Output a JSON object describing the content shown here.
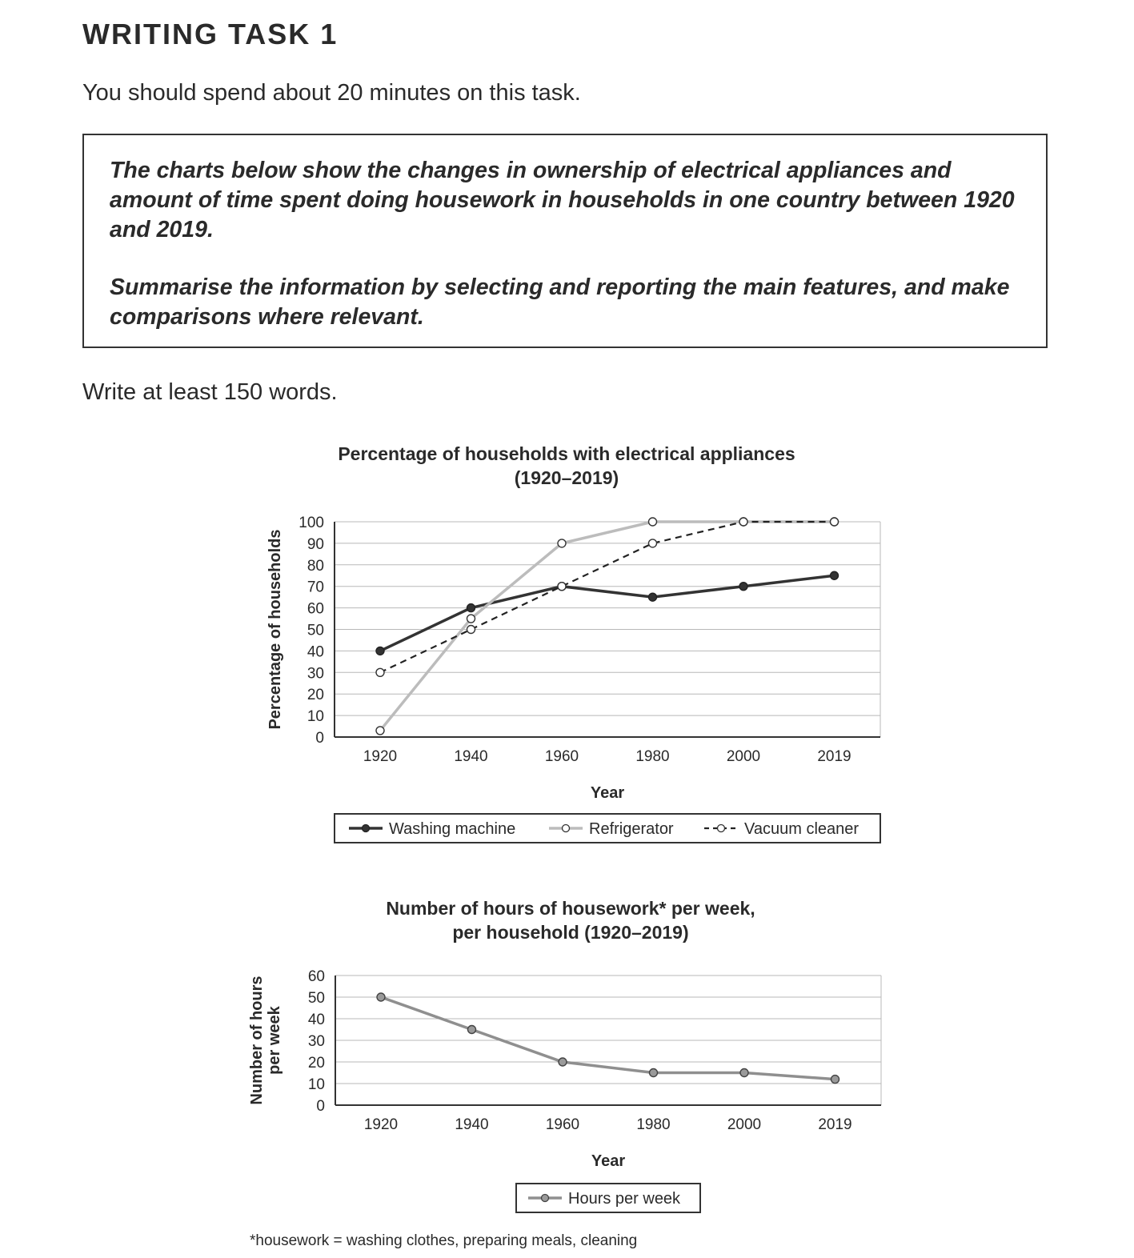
{
  "header": {
    "title": "WRITING TASK 1",
    "instruction": "You should spend about 20 minutes on this task."
  },
  "prompt": {
    "paragraph1": "The charts below show the changes in ownership of electrical appliances and amount of time spent doing housework in households in one country between 1920 and 2019.",
    "paragraph2": "Summarise the information by selecting and reporting the main features, and make comparisons where relevant."
  },
  "word_requirement": "Write at least 150 words.",
  "footnote": "*housework = washing clothes, preparing meals, cleaning",
  "chart_data": [
    {
      "type": "line",
      "title": "Percentage of households with electrical appliances",
      "subtitle": "(1920–2019)",
      "xlabel": "Year",
      "ylabel": "Percentage of households",
      "categories": [
        "1920",
        "1940",
        "1960",
        "1980",
        "2000",
        "2019"
      ],
      "ylim": [
        0,
        100
      ],
      "yticks": [
        0,
        10,
        20,
        30,
        40,
        50,
        60,
        70,
        80,
        90,
        100
      ],
      "grid": true,
      "legend_position": "bottom",
      "series": [
        {
          "name": "Washing machine",
          "values": [
            40,
            60,
            70,
            65,
            70,
            75
          ],
          "color": "#333333",
          "style": "solid",
          "marker": "filled"
        },
        {
          "name": "Refrigerator",
          "values": [
            3,
            55,
            90,
            100,
            100,
            100
          ],
          "color": "#bcbcbc",
          "style": "solid",
          "marker": "open"
        },
        {
          "name": "Vacuum cleaner",
          "values": [
            30,
            50,
            70,
            90,
            100,
            100
          ],
          "color": "#222222",
          "style": "dashed",
          "marker": "open"
        }
      ]
    },
    {
      "type": "line",
      "title": "Number of hours of housework* per week,",
      "subtitle": "per household (1920–2019)",
      "xlabel": "Year",
      "ylabel": "Number of hours per week",
      "ylabel_lines": [
        "Number of hours",
        "per week"
      ],
      "categories": [
        "1920",
        "1940",
        "1960",
        "1980",
        "2000",
        "2019"
      ],
      "ylim": [
        0,
        60
      ],
      "yticks": [
        0,
        10,
        20,
        30,
        40,
        50,
        60
      ],
      "grid": true,
      "legend_position": "bottom",
      "series": [
        {
          "name": "Hours per week",
          "values": [
            50,
            35,
            20,
            15,
            15,
            12
          ],
          "color": "#8f8f8f",
          "style": "solid",
          "marker": "filled-grey"
        }
      ]
    }
  ]
}
